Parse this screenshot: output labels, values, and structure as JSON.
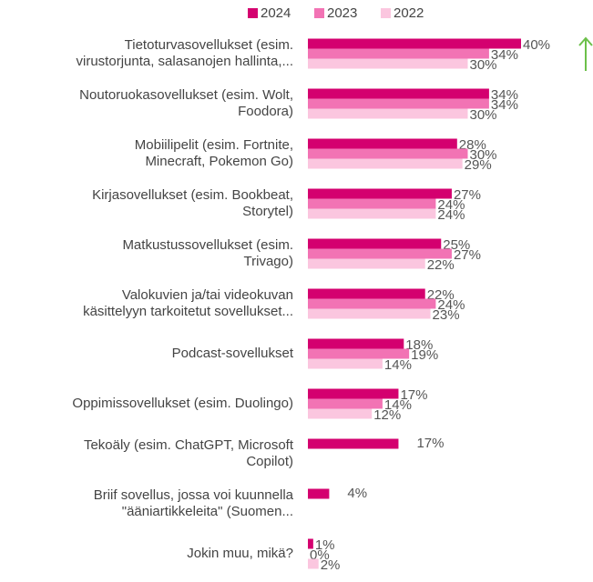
{
  "chart_data": {
    "type": "bar",
    "orientation": "horizontal",
    "categories": [
      "Tietoturvasovellukset (esim.\nvirustorjunta, salasanojen hallinta,...",
      "Noutoruokasovellukset (esim. Wolt,\nFoodora)",
      "Mobiilipelit (esim. Fortnite,\nMinecraft, Pokemon Go)",
      "Kirjasovellukset (esim. Bookbeat,\nStorytel)",
      "Matkustussovellukset (esim.\nTrivago)",
      "Valokuvien ja/tai videokuvan\nkäsittelyyn tarkoitetut sovellukset...",
      "Podcast-sovellukset",
      "Oppimissovellukset (esim. Duolingo)",
      "Tekoäly (esim. ChatGPT, Microsoft\nCopilot)",
      "Briif sovellus, jossa voi kuunnella\n\"ääniartikkeleita\" (Suomen...",
      "Jokin muu, mikä?"
    ],
    "series": [
      {
        "name": "2024",
        "color": "#d4006f",
        "values": [
          40,
          34,
          28,
          27,
          25,
          22,
          18,
          17,
          17,
          4,
          1
        ],
        "value_labels": [
          "40%",
          "34%",
          "28%",
          "27%",
          "25%",
          "22%",
          "18%",
          "17%",
          "17%",
          "4%",
          "1%"
        ]
      },
      {
        "name": "2023",
        "color": "#f273b4",
        "values": [
          34,
          34,
          30,
          24,
          27,
          24,
          19,
          14,
          null,
          null,
          0
        ],
        "value_labels": [
          "34%",
          "34%",
          "30%",
          "24%",
          "27%",
          "24%",
          "19%",
          "14%",
          null,
          null,
          "0%"
        ]
      },
      {
        "name": "2022",
        "color": "#fbc6df",
        "values": [
          30,
          30,
          29,
          24,
          22,
          23,
          14,
          12,
          null,
          null,
          2
        ],
        "value_labels": [
          "30%",
          "30%",
          "29%",
          "24%",
          "22%",
          "23%",
          "14%",
          "12%",
          null,
          null,
          "2%"
        ]
      }
    ],
    "legend": "top"
  }
}
